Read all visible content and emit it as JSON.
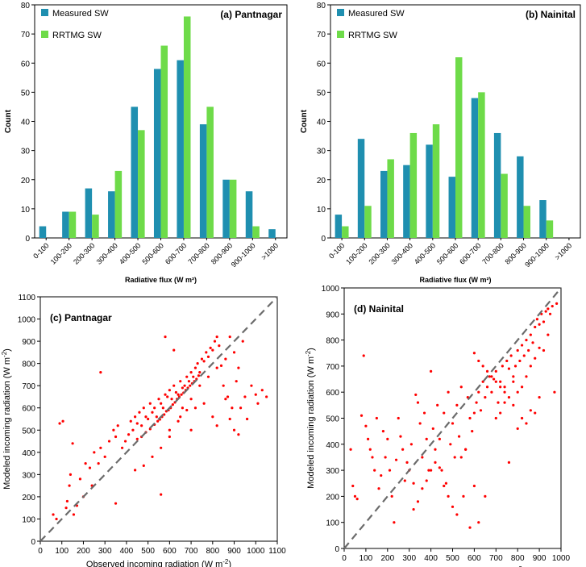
{
  "colors": {
    "measured": "#1f8fb0",
    "rrtmg": "#6edb49",
    "points": "#ff0000",
    "diagonal": "#6b6b6b"
  },
  "chart_data": [
    {
      "type": "bar",
      "title": "(a) Pantnagar",
      "xlabel": "Radiative flux (W m²)",
      "ylabel": "Count",
      "categories": [
        "0-100",
        "100-200",
        "200-300",
        "300-400",
        "400-500",
        "500-600",
        "600-700",
        "700-800",
        "800-900",
        "900-1000",
        ">1000"
      ],
      "series": [
        {
          "name": "Measured SW",
          "values": [
            4,
            9,
            17,
            16,
            45,
            58,
            61,
            39,
            20,
            16,
            3
          ]
        },
        {
          "name": "RRTMG SW",
          "values": [
            0,
            9,
            8,
            23,
            37,
            66,
            76,
            45,
            20,
            4,
            0
          ]
        }
      ],
      "ylim": [
        0,
        80
      ],
      "yticks": [
        "0",
        "10",
        "20",
        "30",
        "40",
        "50",
        "60",
        "70",
        "80"
      ],
      "legend": "top-left"
    },
    {
      "type": "bar",
      "title": "(b) Nainital",
      "xlabel": "Radiative flux (W m²)",
      "ylabel": "Count",
      "categories": [
        "0-100",
        "100-200",
        "200-300",
        "300-400",
        "400-500",
        "500-600",
        "600-700",
        "700-800",
        "800-900",
        "900-1000",
        ">1000"
      ],
      "series": [
        {
          "name": "Measured SW",
          "values": [
            8,
            34,
            23,
            25,
            32,
            21,
            48,
            36,
            28,
            13,
            0
          ]
        },
        {
          "name": "RRTMG SW",
          "values": [
            4,
            11,
            27,
            36,
            39,
            62,
            50,
            22,
            11,
            6,
            0
          ]
        }
      ],
      "ylim": [
        0,
        80
      ],
      "yticks": [
        "0",
        "10",
        "20",
        "30",
        "40",
        "50",
        "60",
        "70",
        "80"
      ],
      "legend": "top-left"
    },
    {
      "type": "scatter",
      "title": "(c) Pantnagar",
      "xlabel": "Observed incoming radiation (W m",
      "ylabel": "Modeled incoming radiation (W m",
      "unit_exponent": "-2",
      "xlim": [
        0,
        1100
      ],
      "ylim": [
        0,
        1100
      ],
      "xticks": [
        "0",
        "100",
        "200",
        "300",
        "400",
        "500",
        "600",
        "700",
        "800",
        "900",
        "1000",
        "1100"
      ],
      "yticks": [
        "0",
        "100",
        "200",
        "300",
        "400",
        "500",
        "600",
        "700",
        "800",
        "900",
        "1000",
        "1100"
      ],
      "points": [
        [
          60,
          120
        ],
        [
          75,
          100
        ],
        [
          90,
          530
        ],
        [
          105,
          540
        ],
        [
          120,
          150
        ],
        [
          125,
          180
        ],
        [
          135,
          250
        ],
        [
          140,
          300
        ],
        [
          150,
          440
        ],
        [
          155,
          120
        ],
        [
          170,
          160
        ],
        [
          185,
          280
        ],
        [
          200,
          200
        ],
        [
          210,
          350
        ],
        [
          230,
          330
        ],
        [
          240,
          250
        ],
        [
          250,
          400
        ],
        [
          270,
          350
        ],
        [
          280,
          420
        ],
        [
          300,
          380
        ],
        [
          320,
          450
        ],
        [
          340,
          500
        ],
        [
          350,
          470
        ],
        [
          360,
          520
        ],
        [
          380,
          420
        ],
        [
          395,
          450
        ],
        [
          410,
          480
        ],
        [
          420,
          540
        ],
        [
          430,
          500
        ],
        [
          440,
          560
        ],
        [
          450,
          530
        ],
        [
          460,
          580
        ],
        [
          470,
          520
        ],
        [
          480,
          600
        ],
        [
          490,
          560
        ],
        [
          500,
          550
        ],
        [
          510,
          620
        ],
        [
          520,
          580
        ],
        [
          530,
          600
        ],
        [
          540,
          560
        ],
        [
          550,
          640
        ],
        [
          560,
          620
        ],
        [
          570,
          600
        ],
        [
          580,
          660
        ],
        [
          590,
          650
        ],
        [
          600,
          680
        ],
        [
          610,
          640
        ],
        [
          620,
          700
        ],
        [
          630,
          670
        ],
        [
          640,
          660
        ],
        [
          650,
          720
        ],
        [
          660,
          690
        ],
        [
          670,
          700
        ],
        [
          680,
          740
        ],
        [
          690,
          720
        ],
        [
          700,
          760
        ],
        [
          710,
          740
        ],
        [
          720,
          780
        ],
        [
          730,
          800
        ],
        [
          740,
          760
        ],
        [
          750,
          820
        ],
        [
          760,
          810
        ],
        [
          770,
          850
        ],
        [
          780,
          830
        ],
        [
          790,
          870
        ],
        [
          800,
          860
        ],
        [
          810,
          900
        ],
        [
          820,
          920
        ],
        [
          830,
          880
        ],
        [
          840,
          790
        ],
        [
          850,
          700
        ],
        [
          870,
          650
        ],
        [
          890,
          600
        ],
        [
          900,
          850
        ],
        [
          910,
          720
        ],
        [
          920,
          780
        ],
        [
          930,
          600
        ],
        [
          940,
          900
        ],
        [
          950,
          650
        ],
        [
          960,
          550
        ],
        [
          980,
          700
        ],
        [
          1000,
          660
        ],
        [
          1010,
          620
        ],
        [
          1030,
          680
        ],
        [
          1050,
          650
        ],
        [
          700,
          500
        ],
        [
          650,
          560
        ],
        [
          600,
          500
        ],
        [
          560,
          210
        ],
        [
          580,
          920
        ],
        [
          620,
          860
        ],
        [
          680,
          590
        ],
        [
          720,
          600
        ],
        [
          760,
          620
        ],
        [
          800,
          560
        ],
        [
          820,
          520
        ],
        [
          860,
          640
        ],
        [
          880,
          550
        ],
        [
          900,
          500
        ],
        [
          920,
          480
        ],
        [
          280,
          760
        ],
        [
          350,
          170
        ],
        [
          440,
          320
        ],
        [
          480,
          340
        ],
        [
          520,
          380
        ],
        [
          560,
          420
        ],
        [
          600,
          470
        ],
        [
          640,
          540
        ],
        [
          660,
          600
        ],
        [
          700,
          640
        ],
        [
          740,
          700
        ],
        [
          780,
          740
        ],
        [
          820,
          780
        ],
        [
          860,
          820
        ],
        [
          880,
          920
        ],
        [
          450,
          460
        ],
        [
          470,
          470
        ],
        [
          490,
          490
        ],
        [
          510,
          505
        ],
        [
          530,
          525
        ],
        [
          545,
          540
        ],
        [
          555,
          548
        ],
        [
          565,
          560
        ],
        [
          575,
          570
        ],
        [
          585,
          585
        ],
        [
          595,
          590
        ],
        [
          605,
          600
        ],
        [
          615,
          615
        ],
        [
          625,
          625
        ],
        [
          635,
          640
        ],
        [
          645,
          650
        ],
        [
          655,
          660
        ],
        [
          665,
          668
        ],
        [
          675,
          680
        ],
        [
          685,
          690
        ],
        [
          695,
          700
        ],
        [
          705,
          710
        ],
        [
          715,
          720
        ],
        [
          725,
          730
        ],
        [
          735,
          745
        ]
      ]
    },
    {
      "type": "scatter",
      "title": "(d) Nainital",
      "xlabel": "Observed incoming radiation (W m",
      "ylabel": "Modeled incoming radiation (W m",
      "unit_exponent": "-2",
      "xlim": [
        0,
        1000
      ],
      "ylim": [
        0,
        1000
      ],
      "xticks": [
        "0",
        "100",
        "200",
        "300",
        "400",
        "500",
        "600",
        "700",
        "800",
        "900",
        "1000"
      ],
      "yticks": [
        "0",
        "100",
        "200",
        "300",
        "400",
        "500",
        "600",
        "700",
        "800",
        "900",
        "1000"
      ],
      "points": [
        [
          30,
          380
        ],
        [
          40,
          240
        ],
        [
          50,
          200
        ],
        [
          60,
          190
        ],
        [
          80,
          510
        ],
        [
          90,
          740
        ],
        [
          100,
          470
        ],
        [
          110,
          420
        ],
        [
          120,
          380
        ],
        [
          130,
          350
        ],
        [
          140,
          300
        ],
        [
          150,
          500
        ],
        [
          160,
          230
        ],
        [
          170,
          280
        ],
        [
          180,
          450
        ],
        [
          190,
          350
        ],
        [
          200,
          420
        ],
        [
          210,
          300
        ],
        [
          220,
          200
        ],
        [
          230,
          100
        ],
        [
          240,
          340
        ],
        [
          250,
          500
        ],
        [
          260,
          430
        ],
        [
          270,
          380
        ],
        [
          280,
          260
        ],
        [
          290,
          330
        ],
        [
          300,
          300
        ],
        [
          310,
          400
        ],
        [
          320,
          250
        ],
        [
          330,
          590
        ],
        [
          340,
          560
        ],
        [
          350,
          480
        ],
        [
          360,
          350
        ],
        [
          370,
          520
        ],
        [
          380,
          420
        ],
        [
          390,
          300
        ],
        [
          400,
          680
        ],
        [
          410,
          460
        ],
        [
          420,
          380
        ],
        [
          430,
          550
        ],
        [
          440,
          420
        ],
        [
          450,
          300
        ],
        [
          460,
          520
        ],
        [
          470,
          250
        ],
        [
          480,
          600
        ],
        [
          490,
          400
        ],
        [
          500,
          480
        ],
        [
          510,
          350
        ],
        [
          520,
          550
        ],
        [
          530,
          430
        ],
        [
          540,
          620
        ],
        [
          550,
          200
        ],
        [
          560,
          380
        ],
        [
          570,
          580
        ],
        [
          580,
          500
        ],
        [
          590,
          450
        ],
        [
          600,
          520
        ],
        [
          610,
          560
        ],
        [
          620,
          600
        ],
        [
          630,
          530
        ],
        [
          640,
          640
        ],
        [
          650,
          580
        ],
        [
          660,
          620
        ],
        [
          670,
          660
        ],
        [
          680,
          600
        ],
        [
          690,
          650
        ],
        [
          700,
          680
        ],
        [
          710,
          560
        ],
        [
          720,
          640
        ],
        [
          730,
          700
        ],
        [
          740,
          620
        ],
        [
          750,
          720
        ],
        [
          760,
          690
        ],
        [
          770,
          740
        ],
        [
          780,
          660
        ],
        [
          790,
          700
        ],
        [
          800,
          760
        ],
        [
          810,
          720
        ],
        [
          820,
          780
        ],
        [
          830,
          740
        ],
        [
          840,
          800
        ],
        [
          850,
          760
        ],
        [
          860,
          820
        ],
        [
          870,
          790
        ],
        [
          880,
          850
        ],
        [
          890,
          880
        ],
        [
          900,
          860
        ],
        [
          910,
          900
        ],
        [
          920,
          870
        ],
        [
          930,
          910
        ],
        [
          940,
          920
        ],
        [
          950,
          900
        ],
        [
          960,
          930
        ],
        [
          970,
          600
        ],
        [
          980,
          940
        ],
        [
          600,
          240
        ],
        [
          620,
          100
        ],
        [
          580,
          80
        ],
        [
          650,
          200
        ],
        [
          560,
          380
        ],
        [
          540,
          350
        ],
        [
          520,
          130
        ],
        [
          500,
          160
        ],
        [
          480,
          200
        ],
        [
          460,
          240
        ],
        [
          440,
          310
        ],
        [
          420,
          330
        ],
        [
          400,
          300
        ],
        [
          380,
          260
        ],
        [
          360,
          230
        ],
        [
          340,
          180
        ],
        [
          320,
          150
        ],
        [
          700,
          500
        ],
        [
          720,
          520
        ],
        [
          740,
          560
        ],
        [
          760,
          330
        ],
        [
          780,
          550
        ],
        [
          800,
          460
        ],
        [
          820,
          500
        ],
        [
          840,
          480
        ],
        [
          860,
          530
        ],
        [
          880,
          520
        ],
        [
          900,
          580
        ],
        [
          920,
          760
        ],
        [
          940,
          820
        ],
        [
          600,
          750
        ],
        [
          620,
          720
        ],
        [
          640,
          700
        ],
        [
          660,
          680
        ],
        [
          680,
          660
        ],
        [
          700,
          640
        ],
        [
          720,
          620
        ],
        [
          740,
          600
        ],
        [
          760,
          580
        ],
        [
          780,
          640
        ],
        [
          800,
          600
        ],
        [
          820,
          620
        ],
        [
          840,
          660
        ],
        [
          860,
          700
        ],
        [
          880,
          730
        ],
        [
          900,
          770
        ]
      ]
    }
  ]
}
